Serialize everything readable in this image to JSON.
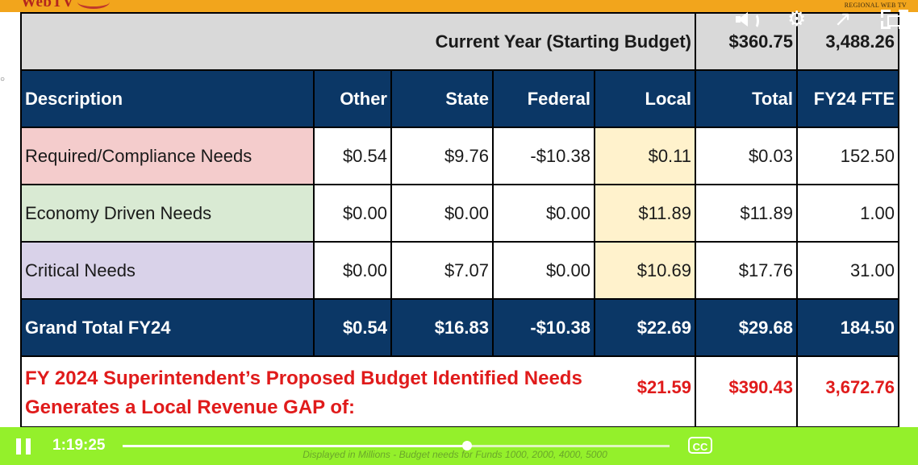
{
  "banner": {
    "logo_text": "WebTV",
    "right_text": "REGIONAL WEB TV",
    "color": "#f2a51c"
  },
  "table": {
    "header_label": "Current Year (Starting Budget)",
    "header_total": "$360.75",
    "header_fte": "3,488.26",
    "columns": [
      "Description",
      "Other",
      "State",
      "Federal",
      "Local",
      "Total",
      "FY24 FTE"
    ],
    "rows": [
      {
        "description": "Required/Compliance Needs",
        "values": [
          "$0.54",
          "$9.76",
          "-$10.38",
          "$0.11",
          "$0.03",
          "152.50"
        ]
      },
      {
        "description": "Economy Driven Needs",
        "values": [
          "$0.00",
          "$0.00",
          "$0.00",
          "$11.89",
          "$11.89",
          "1.00"
        ]
      },
      {
        "description": "Critical Needs",
        "values": [
          "$0.00",
          "$7.07",
          "$0.00",
          "$10.69",
          "$17.76",
          "31.00"
        ]
      }
    ],
    "grand_total": {
      "label": "Grand Total FY24",
      "values": [
        "$0.54",
        "$16.83",
        "-$10.38",
        "$22.69",
        "$29.68",
        "184.50"
      ]
    },
    "gap": {
      "label": "FY 2024 Superintendent’s Proposed Budget Identified Needs Generates a Local Revenue GAP of:",
      "local": "$21.59",
      "total": "$390.43",
      "fte": "3,672.76"
    },
    "colors": {
      "header_blue": "#0b3766",
      "required": "#f4cccc",
      "economy": "#d9ead3",
      "critical": "#d9d2e9",
      "local_highlight": "#fff2cc",
      "gap_text": "#e01b1b"
    }
  },
  "player": {
    "time": "1:19:25",
    "progress": 0.63,
    "cc_label": "CC",
    "caption": "Displayed in Millions - Budget needs for Funds 1000, 2000, 4000, 5000",
    "bar_color": "#94f02b",
    "icons": [
      "pause-icon",
      "closed-captions-icon",
      "volume-icon",
      "settings-gear-icon",
      "share-icon",
      "fullscreen-icon"
    ]
  }
}
